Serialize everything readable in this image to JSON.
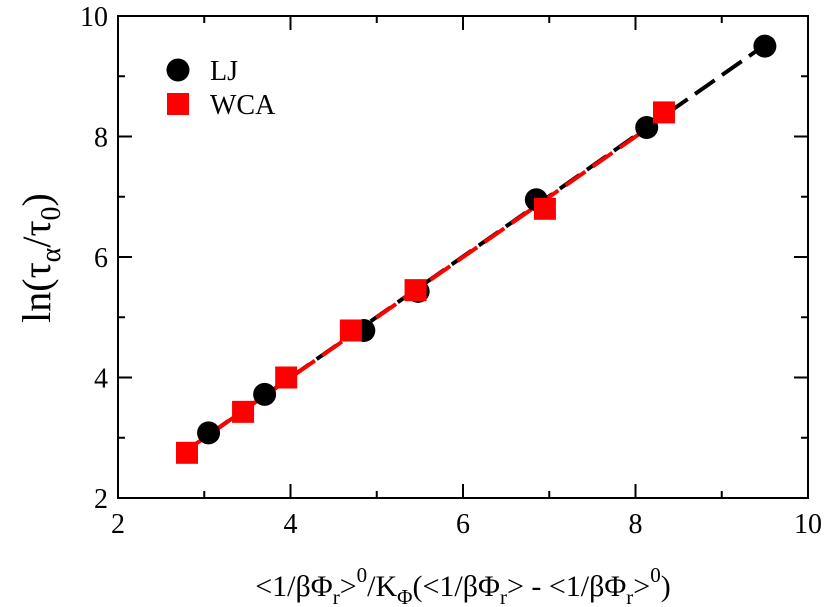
{
  "chart_data": {
    "type": "scatter",
    "title": "",
    "xlabel": {
      "parts": [
        "<1/βΦ",
        "r",
        ">",
        "0",
        "/K",
        "Φ",
        "(<1/βΦ",
        "r",
        "> - <1/βΦ",
        "r",
        ">",
        "0",
        ")"
      ]
    },
    "ylabel": {
      "parts": [
        "ln(τ",
        "α",
        "/τ",
        "0",
        ")"
      ]
    },
    "xlim": [
      2,
      10
    ],
    "ylim": [
      2,
      10
    ],
    "x_ticks": [
      "2",
      "4",
      "6",
      "8",
      "10"
    ],
    "y_ticks": [
      "2",
      "4",
      "6",
      "8",
      "10"
    ],
    "grid": false,
    "legend_position": "top-left",
    "series": [
      {
        "name": "LJ",
        "marker": "circle",
        "color": "#000000",
        "line_style": "dashed",
        "x": [
          3.05,
          3.7,
          4.85,
          5.48,
          6.85,
          8.13,
          9.5
        ],
        "y": [
          3.08,
          3.72,
          4.78,
          5.43,
          6.95,
          8.15,
          9.5
        ]
      },
      {
        "name": "WCA",
        "marker": "square",
        "color": "#ff0000",
        "line_style": "dashed",
        "x": [
          2.8,
          3.45,
          3.95,
          4.7,
          5.45,
          6.95,
          8.33
        ],
        "y": [
          2.75,
          3.43,
          4.0,
          4.78,
          5.45,
          6.8,
          8.4
        ]
      }
    ]
  }
}
